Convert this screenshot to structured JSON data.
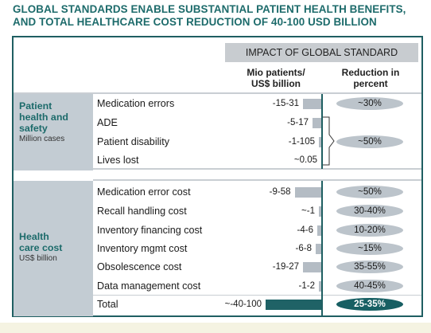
{
  "title_line1": "GLOBAL STANDARDS ENABLE SUBSTANTIAL PATIENT HEALTH BENEFITS,",
  "title_line2": "AND TOTAL HEALTHCARE COST REDUCTION OF 40-100 USD BILLION",
  "header": {
    "impact": "IMPACT OF GLOBAL STANDARD",
    "col1_line1": "Mio patients/",
    "col1_line2": "US$ billion",
    "col2_line1": "Reduction in",
    "col2_line2": "percent"
  },
  "groups": [
    {
      "title_lines": [
        "Patient",
        "health and",
        "safety"
      ],
      "subtitle": "Million cases"
    },
    {
      "title_lines": [
        "Health",
        "care cost"
      ],
      "subtitle": "US$ billion"
    }
  ],
  "colors": {
    "accent": "#1d6b6b",
    "bar": "#b4bcc4",
    "total_bar": "#1f6266",
    "pill": "#bcc4cb"
  },
  "chart_data": {
    "type": "bar",
    "orientation": "horizontal",
    "categories": [
      "Medication errors",
      "ADE",
      "Patient disability",
      "Lives lost",
      "Medication error cost",
      "Recall handling cost",
      "Inventory financing cost",
      "Inventory mgmt cost",
      "Obsolescence cost",
      "Data management cost",
      "Total"
    ],
    "value_labels": [
      "-15-31",
      "-5-17",
      "-1-105",
      "~0.05",
      "-9-58",
      "~-1",
      "-4-6",
      "-6-8",
      "-19-27",
      "-1-2",
      "~-40-100"
    ],
    "values": [
      23,
      11,
      3,
      0,
      33.5,
      1,
      5,
      7,
      23,
      1.5,
      70
    ],
    "reductions": [
      "~30%",
      "~50%",
      "~50%",
      "35-55%",
      "40-45%",
      "25-35%",
      "30-40%",
      "10-20%",
      "~15%"
    ],
    "reduction_pills": [
      {
        "text": "~30%",
        "row": 0
      },
      {
        "text": "~50%",
        "row": 2,
        "bracket": [
          1,
          3
        ]
      },
      {
        "text": "~50%",
        "row": 4
      },
      {
        "text": "30-40%",
        "row": 5
      },
      {
        "text": "10-20%",
        "row": 6
      },
      {
        "text": "~15%",
        "row": 7
      },
      {
        "text": "35-55%",
        "row": 8
      },
      {
        "text": "40-45%",
        "row": 9
      },
      {
        "text": "25-35%",
        "row": 10,
        "total": true
      }
    ]
  }
}
